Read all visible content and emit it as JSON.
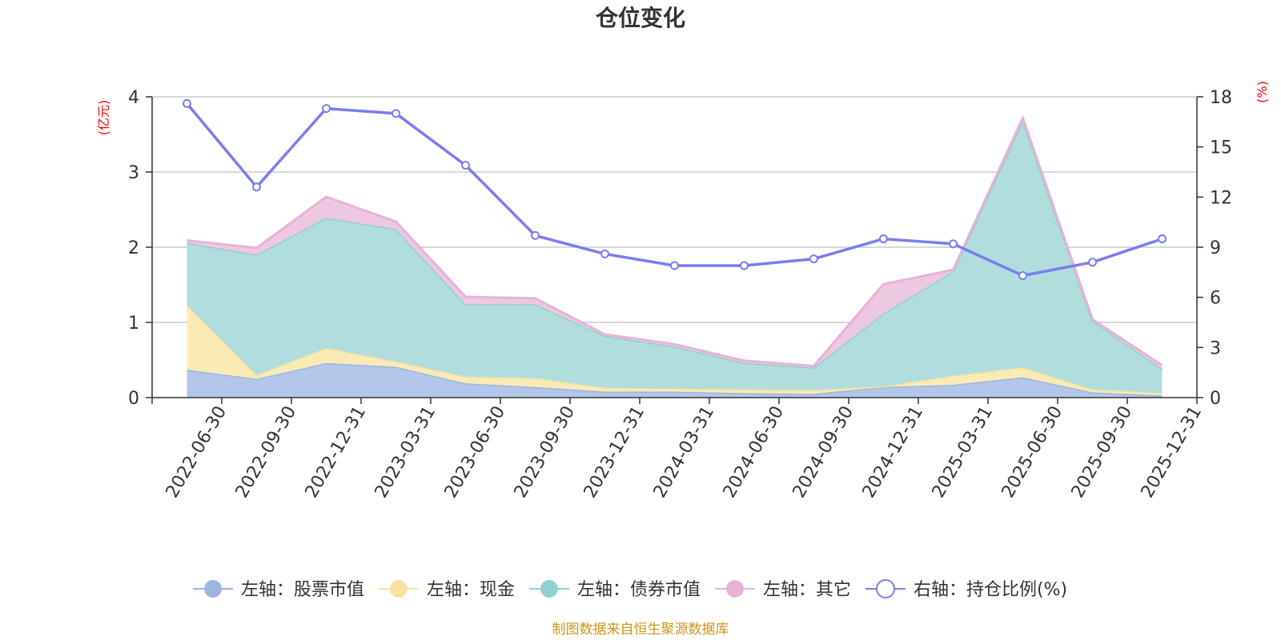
{
  "chart_data": {
    "type": "area",
    "title": "仓位变化",
    "left_unit": "(亿元)",
    "right_unit": "(%)",
    "categories": [
      "2022-06-30",
      "2022-09-30",
      "2022-12-31",
      "2023-03-31",
      "2023-06-30",
      "2023-09-30",
      "2023-12-31",
      "2024-03-31",
      "2024-06-30",
      "2024-09-30",
      "2024-12-31",
      "2025-03-31",
      "2025-06-30",
      "2025-09-30",
      "2025-12-31"
    ],
    "left_axis": {
      "min": 0,
      "max": 4,
      "ticks": [
        0,
        1,
        2,
        3,
        4
      ]
    },
    "right_axis": {
      "min": 0,
      "max": 18,
      "ticks": [
        0,
        3,
        6,
        9,
        12,
        15,
        18
      ]
    },
    "grid": true,
    "stacked": true,
    "legend_position": "bottom",
    "series": [
      {
        "name": "左轴：股票市值",
        "axis": "left",
        "kind": "area",
        "color": "#9db5e0",
        "fill": "#b4c6ea",
        "values": [
          0.37,
          0.25,
          0.46,
          0.41,
          0.19,
          0.14,
          0.08,
          0.08,
          0.06,
          0.05,
          0.14,
          0.17,
          0.27,
          0.07,
          0.03
        ]
      },
      {
        "name": "左轴：现金",
        "axis": "left",
        "kind": "area",
        "color": "#f7e3a0",
        "fill": "#faebb6",
        "values": [
          0.86,
          0.05,
          0.2,
          0.07,
          0.09,
          0.12,
          0.05,
          0.04,
          0.05,
          0.05,
          0.01,
          0.12,
          0.13,
          0.04,
          0.03
        ]
      },
      {
        "name": "左轴：债券市值",
        "axis": "left",
        "kind": "area",
        "color": "#8fd0d0",
        "fill": "#b1dedd",
        "values": [
          0.83,
          1.6,
          1.73,
          1.76,
          0.96,
          0.98,
          0.69,
          0.56,
          0.35,
          0.3,
          0.97,
          1.39,
          3.28,
          0.91,
          0.32
        ]
      },
      {
        "name": "左轴：其它",
        "axis": "left",
        "kind": "area",
        "color": "#e8b2d7",
        "fill": "#ecc9e0",
        "values": [
          0.03,
          0.09,
          0.28,
          0.1,
          0.1,
          0.08,
          0.02,
          0.03,
          0.03,
          0.02,
          0.39,
          0.02,
          0.04,
          0.02,
          0.05
        ]
      },
      {
        "name": "右轴：持仓比例(%)",
        "axis": "right",
        "kind": "line",
        "color": "#7a7eef",
        "values": [
          17.6,
          12.6,
          17.3,
          17.0,
          13.9,
          9.7,
          8.6,
          7.9,
          7.9,
          8.3,
          9.5,
          9.2,
          7.3,
          8.1,
          9.5
        ]
      }
    ],
    "source_note": "制图数据来自恒生聚源数据库"
  }
}
